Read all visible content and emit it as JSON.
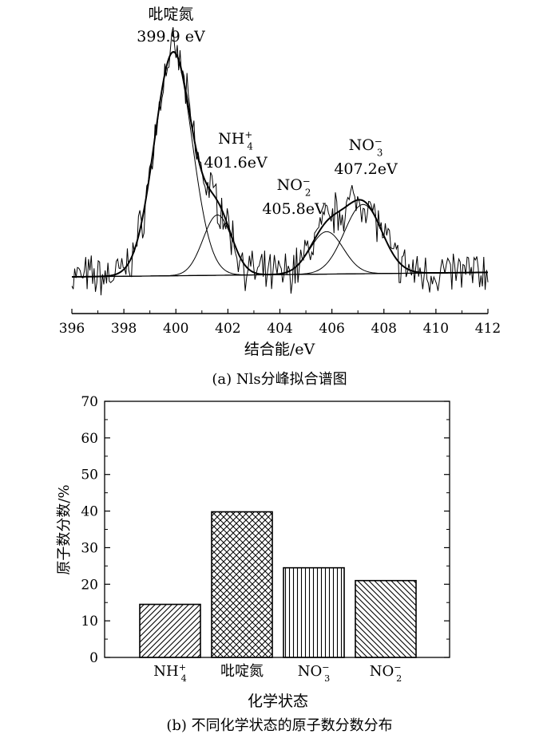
{
  "chart_data": [
    {
      "type": "line",
      "caption": "(a) Nls分峰拟合谱图",
      "xlabel": "结合能/eV",
      "xlim": [
        396,
        412
      ],
      "x_ticks": [
        396,
        398,
        400,
        402,
        404,
        406,
        408,
        410,
        412
      ],
      "x_reversed": false,
      "y_axis_visible": false,
      "peaks": [
        {
          "name": "吡啶氮",
          "position_label": "399.9 eV",
          "center": 399.9,
          "height": 1.0,
          "fwhm": 1.7
        },
        {
          "name_base": "NH",
          "name_sub": "4",
          "name_sup": "+",
          "position_label": "401.6eV",
          "center": 401.6,
          "height": 0.27,
          "fwhm": 1.3
        },
        {
          "name_base": "NO",
          "name_sub": "2",
          "name_sup": "−",
          "position_label": "405.8eV",
          "center": 405.8,
          "height": 0.19,
          "fwhm": 1.5
        },
        {
          "name_base": "NO",
          "name_sub": "3",
          "name_sup": "−",
          "position_label": "407.2eV",
          "center": 407.2,
          "height": 0.31,
          "fwhm": 1.7
        }
      ]
    },
    {
      "type": "bar",
      "caption": "(b) 不同化学状态的原子数分数分布",
      "xlabel": "化学状态",
      "ylabel": "原子数分数/%",
      "ylim": [
        0,
        70
      ],
      "y_ticks": [
        0,
        10,
        20,
        30,
        40,
        50,
        60,
        70
      ],
      "categories": [
        {
          "base": "NH",
          "sub": "4",
          "sup": "+"
        },
        {
          "base": "吡啶氮",
          "sub": "",
          "sup": ""
        },
        {
          "base": "NO",
          "sub": "3",
          "sup": "−"
        },
        {
          "base": "NO",
          "sub": "2",
          "sup": "−"
        }
      ],
      "values": [
        14.5,
        39.8,
        24.5,
        21.0
      ],
      "patterns": [
        "diag-fwd",
        "crosshatch",
        "vertical",
        "diag-back"
      ]
    }
  ]
}
